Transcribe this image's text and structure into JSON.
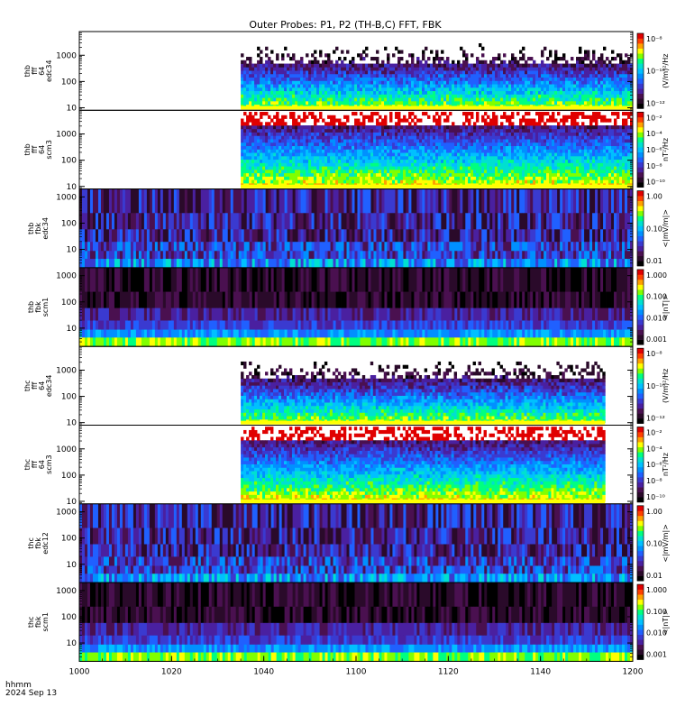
{
  "title": "Outer Probes: P1, P2 (TH-B,C) FFT, FBK",
  "corner_label": [
    "hhmm",
    "2024 Sep 13"
  ],
  "chart_data": {
    "type": "heatmap",
    "x_axis": {
      "ticks": [
        {
          "value": 0,
          "label": "1000"
        },
        {
          "value": 20,
          "label": "1020"
        },
        {
          "value": 40,
          "label": "1040"
        },
        {
          "value": 60,
          "label": "1100"
        },
        {
          "value": 80,
          "label": "1120"
        },
        {
          "value": 100,
          "label": "1140"
        },
        {
          "value": 120,
          "label": "1200"
        }
      ],
      "range_minutes": [
        0,
        120
      ]
    },
    "panels": [
      {
        "id": "thb-fff-e34",
        "ylabel": [
          "thb",
          "fff",
          "64",
          "edc34"
        ],
        "kind": "fft",
        "ylim": [
          8,
          8000
        ],
        "yticks": [
          10,
          100,
          1000
        ],
        "data_start": 35,
        "data_end": 120,
        "cbar_unit": "(V/m)²/Hz",
        "cbar_ticks": [
          "10⁻⁸",
          "10⁻¹⁰",
          "10⁻¹²"
        ]
      },
      {
        "id": "thb-fff-scm3",
        "ylabel": [
          "thb",
          "fff",
          "64",
          "scm3"
        ],
        "kind": "fft_scm",
        "ylim": [
          8,
          8000
        ],
        "yticks": [
          10,
          100,
          1000
        ],
        "data_start": 35,
        "data_end": 120,
        "cbar_unit": "nT²/Hz",
        "cbar_ticks": [
          "10⁻²",
          "10⁻⁴",
          "10⁻⁶",
          "10⁻⁸",
          "10⁻¹⁰"
        ]
      },
      {
        "id": "thb-fbk-e34",
        "ylabel": [
          "thb",
          "fbk",
          "edc34"
        ],
        "kind": "fbk_e",
        "ylim": [
          2,
          2000
        ],
        "yticks": [
          10,
          100,
          1000
        ],
        "data_start": 0,
        "data_end": 120,
        "cbar_unit": "<|mV/m|>",
        "cbar_ticks": [
          "1.00",
          "0.10",
          "0.01"
        ]
      },
      {
        "id": "thb-fbk-scm1",
        "ylabel": [
          "thb",
          "fbk",
          "scm1"
        ],
        "kind": "fbk_b",
        "ylim": [
          2,
          2000
        ],
        "yticks": [
          10,
          100,
          1000
        ],
        "data_start": 0,
        "data_end": 120,
        "cbar_unit": "<|nT|>",
        "cbar_ticks": [
          "1.000",
          "0.100",
          "0.010",
          "0.001"
        ]
      },
      {
        "id": "thc-fff-e34",
        "ylabel": [
          "thc",
          "fff",
          "64",
          "edc34"
        ],
        "kind": "fft",
        "ylim": [
          8,
          8000
        ],
        "yticks": [
          10,
          100,
          1000
        ],
        "data_start": 35,
        "data_end": 114,
        "cbar_unit": "(V/m)²/Hz",
        "cbar_ticks": [
          "10⁻⁸",
          "10⁻¹⁰",
          "10⁻¹²"
        ]
      },
      {
        "id": "thc-fff-scm3",
        "ylabel": [
          "thc",
          "fff",
          "64",
          "scm3"
        ],
        "kind": "fft_scm",
        "ylim": [
          8,
          8000
        ],
        "yticks": [
          10,
          100,
          1000
        ],
        "data_start": 35,
        "data_end": 114,
        "cbar_unit": "nT²/Hz",
        "cbar_ticks": [
          "10⁻²",
          "10⁻⁴",
          "10⁻⁶",
          "10⁻⁸",
          "10⁻¹⁰"
        ]
      },
      {
        "id": "thc-fbk-e12",
        "ylabel": [
          "thc",
          "fbk",
          "edc12"
        ],
        "kind": "fbk_e",
        "ylim": [
          2,
          2000
        ],
        "yticks": [
          10,
          100,
          1000
        ],
        "data_start": 0,
        "data_end": 120,
        "cbar_unit": "<|mV/m|>",
        "cbar_ticks": [
          "1.00",
          "0.10",
          "0.01"
        ]
      },
      {
        "id": "thc-fbk-scm1",
        "ylabel": [
          "thc",
          "fbk",
          "scm1"
        ],
        "kind": "fbk_b",
        "ylim": [
          2,
          2000
        ],
        "yticks": [
          10,
          100,
          1000
        ],
        "data_start": 0,
        "data_end": 120,
        "cbar_unit": "<|nT|>",
        "cbar_ticks": [
          "1.000",
          "0.100",
          "0.010",
          "0.001"
        ]
      }
    ],
    "colors": {
      "spectrum": [
        "#000000",
        "#2a0a2a",
        "#4a1050",
        "#4a20a0",
        "#3a3ad0",
        "#2060ff",
        "#0090ff",
        "#00c0ff",
        "#00e0d0",
        "#00ff80",
        "#80ff00",
        "#ffff00",
        "#ffa000",
        "#ff4000",
        "#e00000"
      ]
    },
    "xlabel": "",
    "grid": false,
    "legend": "colorbar-right"
  }
}
